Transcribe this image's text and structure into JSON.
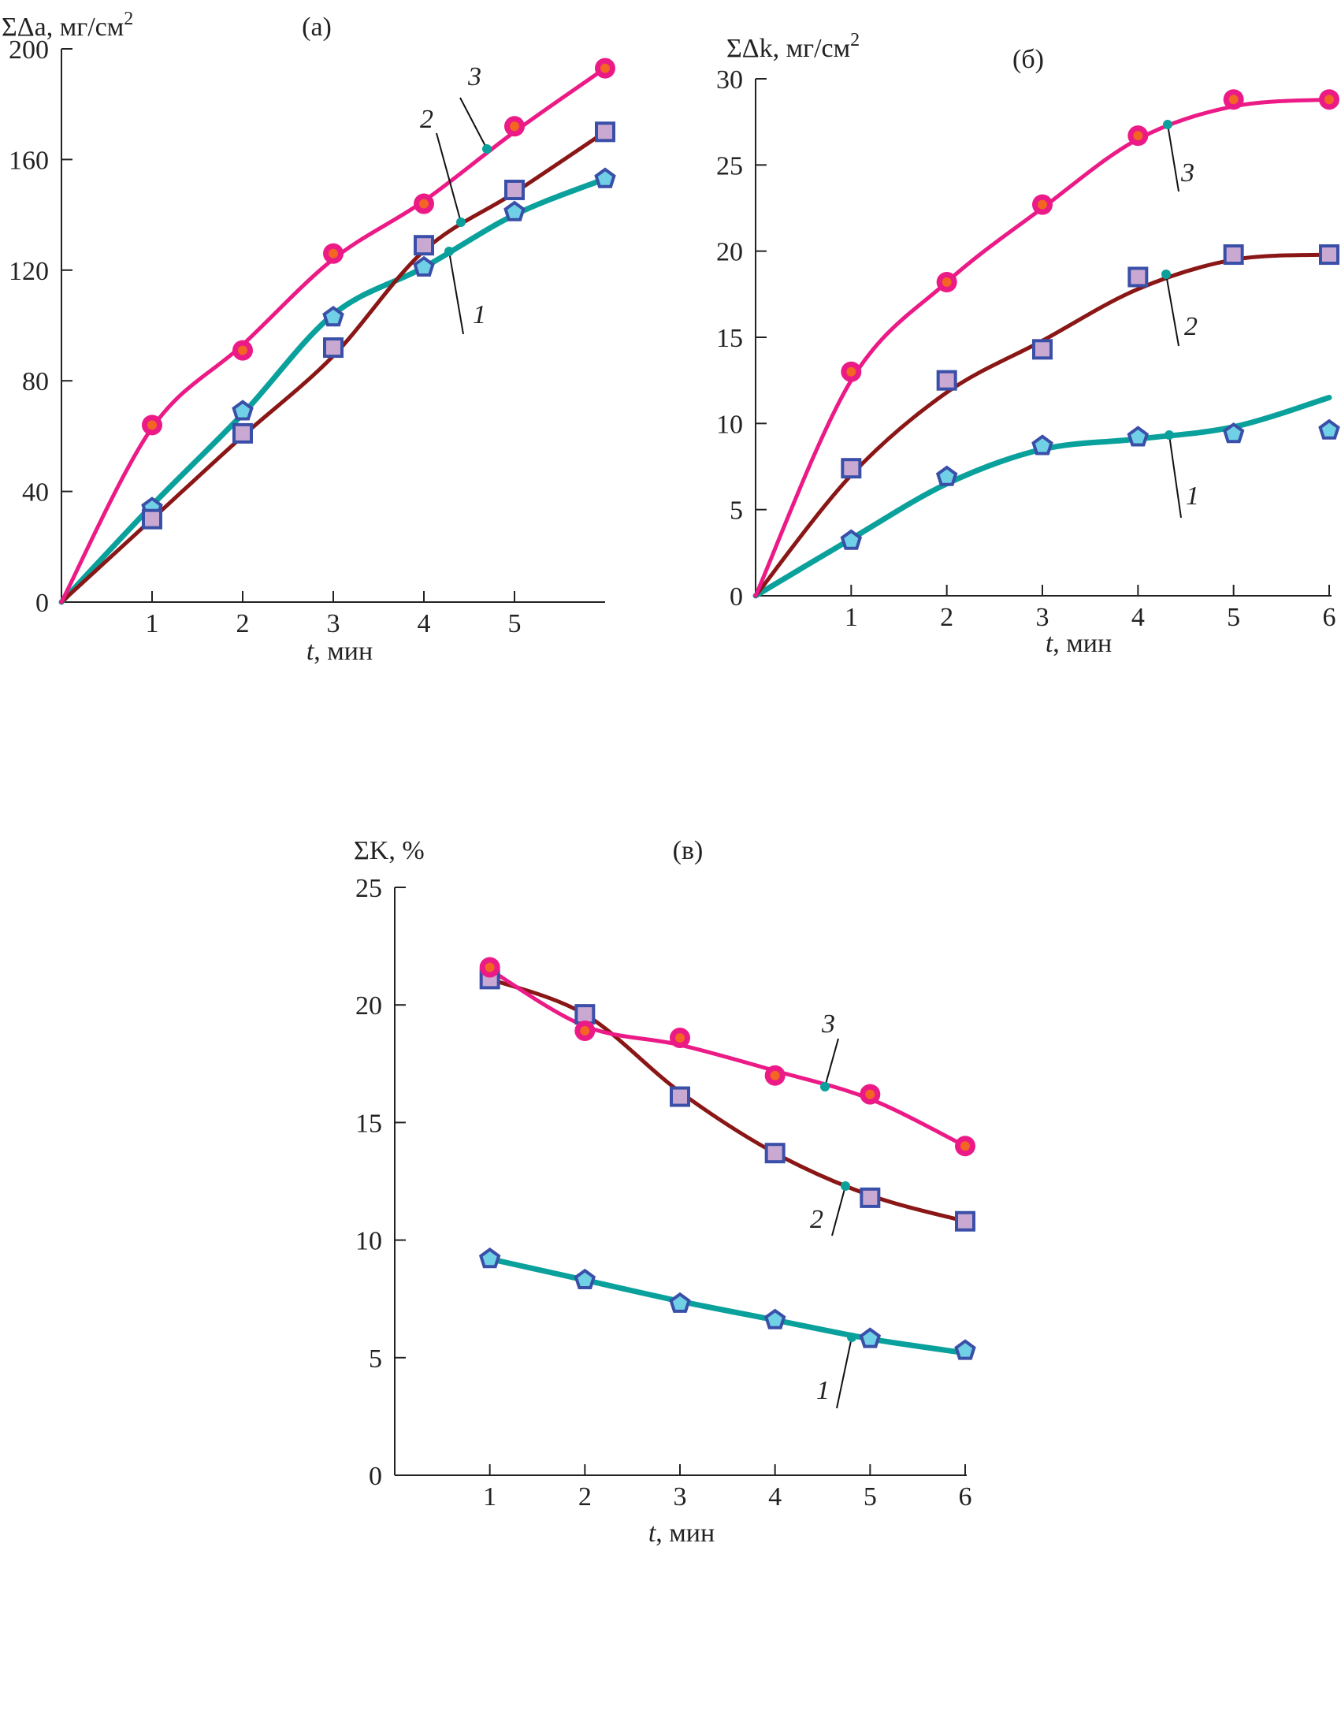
{
  "colors": {
    "s1": "#0aa19c",
    "s2": "#8a1616",
    "s3": "#ec1a86",
    "marker_edge": "#3a4fa8",
    "pent_fill": "#6fd0e6",
    "sq_fill": "#c9a9d2",
    "circ_fill": "#f26522",
    "callout_dot": "#0aa19c"
  },
  "chart_data": [
    {
      "type": "line",
      "id": "a",
      "panel_label": "(а)",
      "ylabel": "ΣΔа, мг/см",
      "ylabel_sup": "2",
      "xlabel_var": "t",
      "xlabel_unit": ", мин",
      "xlim": [
        0,
        6
      ],
      "ylim": [
        0,
        200
      ],
      "xticks": [
        1,
        2,
        3,
        4,
        5
      ],
      "yticks": [
        0,
        40,
        80,
        120,
        160,
        200
      ],
      "series": [
        {
          "name": "1",
          "marker": "pentagon",
          "x": [
            1,
            2,
            3,
            4,
            5,
            6
          ],
          "y": [
            34,
            69,
            103,
            121,
            141,
            153
          ],
          "curve": [
            [
              0,
              0
            ],
            [
              1,
              35
            ],
            [
              2,
              68
            ],
            [
              3,
              104
            ],
            [
              4,
              121
            ],
            [
              5,
              140
            ],
            [
              6,
              153
            ]
          ]
        },
        {
          "name": "2",
          "marker": "square",
          "x": [
            1,
            2,
            3,
            4,
            5,
            6
          ],
          "y": [
            30,
            61,
            92,
            129,
            149,
            170
          ],
          "curve": [
            [
              0,
              0
            ],
            [
              1,
              30
            ],
            [
              2,
              60
            ],
            [
              3,
              89
            ],
            [
              4,
              127
            ],
            [
              5,
              148
            ],
            [
              6,
              170
            ]
          ]
        },
        {
          "name": "3",
          "marker": "circle",
          "x": [
            1,
            2,
            3,
            4,
            5,
            6
          ],
          "y": [
            64,
            91,
            126,
            144,
            172,
            193
          ],
          "curve": [
            [
              0,
              0
            ],
            [
              1,
              63
            ],
            [
              2,
              93
            ],
            [
              3,
              124
            ],
            [
              4,
              145
            ],
            [
              5,
              170
            ],
            [
              6,
              193
            ]
          ]
        }
      ],
      "callouts": [
        {
          "label": "1"
        },
        {
          "label": "2"
        },
        {
          "label": "3"
        }
      ]
    },
    {
      "type": "line",
      "id": "b",
      "panel_label": "(б)",
      "ylabel": "ΣΔk, мг/см",
      "ylabel_sup": "2",
      "xlabel_var": "t",
      "xlabel_unit": ", мин",
      "xlim": [
        0,
        6
      ],
      "ylim": [
        0,
        30
      ],
      "xticks": [
        1,
        2,
        3,
        4,
        5,
        6
      ],
      "yticks": [
        0,
        5,
        10,
        15,
        20,
        25,
        30
      ],
      "series": [
        {
          "name": "1",
          "marker": "pentagon",
          "x": [
            1,
            2,
            3,
            4,
            5,
            6
          ],
          "y": [
            3.2,
            6.9,
            8.7,
            9.2,
            9.4,
            9.6
          ],
          "curve": [
            [
              0,
              0
            ],
            [
              1,
              3.3
            ],
            [
              2,
              6.5
            ],
            [
              3,
              8.5
            ],
            [
              4,
              9.1
            ],
            [
              5,
              9.8
            ],
            [
              6,
              11.5
            ]
          ]
        },
        {
          "name": "2",
          "marker": "square",
          "x": [
            1,
            2,
            3,
            4,
            5,
            6
          ],
          "y": [
            7.4,
            12.5,
            14.3,
            18.5,
            19.8,
            19.8
          ],
          "curve": [
            [
              0,
              0
            ],
            [
              1,
              7.0
            ],
            [
              2,
              11.8
            ],
            [
              3,
              14.8
            ],
            [
              4,
              17.8
            ],
            [
              5,
              19.5
            ],
            [
              6,
              19.8
            ]
          ]
        },
        {
          "name": "3",
          "marker": "circle",
          "x": [
            1,
            2,
            3,
            4,
            5,
            6
          ],
          "y": [
            13.0,
            18.2,
            22.7,
            26.7,
            28.8,
            28.8
          ],
          "curve": [
            [
              0,
              0
            ],
            [
              1,
              12.5
            ],
            [
              2,
              18.2
            ],
            [
              3,
              22.5
            ],
            [
              4,
              26.5
            ],
            [
              5,
              28.4
            ],
            [
              6,
              28.8
            ]
          ]
        }
      ],
      "callouts": [
        {
          "label": "1"
        },
        {
          "label": "2"
        },
        {
          "label": "3"
        }
      ]
    },
    {
      "type": "line",
      "id": "c",
      "panel_label": "(в)",
      "ylabel": "ΣK, %",
      "ylabel_sup": "",
      "xlabel_var": "t",
      "xlabel_unit": ", мин",
      "xlim": [
        0,
        6
      ],
      "ylim": [
        0,
        25
      ],
      "xticks": [
        1,
        2,
        3,
        4,
        5,
        6
      ],
      "yticks": [
        0,
        5,
        10,
        15,
        20,
        25
      ],
      "series": [
        {
          "name": "1",
          "marker": "pentagon",
          "x": [
            1,
            2,
            3,
            4,
            5,
            6
          ],
          "y": [
            9.2,
            8.3,
            7.3,
            6.6,
            5.8,
            5.3
          ],
          "curve": [
            [
              1,
              9.2
            ],
            [
              2,
              8.3
            ],
            [
              3,
              7.4
            ],
            [
              4,
              6.6
            ],
            [
              5,
              5.8
            ],
            [
              6,
              5.2
            ]
          ]
        },
        {
          "name": "2",
          "marker": "square",
          "x": [
            1,
            2,
            3,
            4,
            5,
            6
          ],
          "y": [
            21.1,
            19.6,
            16.1,
            13.7,
            11.8,
            10.8
          ],
          "curve": [
            [
              1,
              21.1
            ],
            [
              2,
              19.6
            ],
            [
              3,
              16.3
            ],
            [
              4,
              13.7
            ],
            [
              5,
              11.9
            ],
            [
              6,
              10.8
            ]
          ]
        },
        {
          "name": "3",
          "marker": "circle",
          "x": [
            1,
            2,
            3,
            4,
            5,
            6
          ],
          "y": [
            21.6,
            18.9,
            18.6,
            17.0,
            16.2,
            14.0
          ],
          "curve": [
            [
              1,
              21.5
            ],
            [
              2,
              19.1
            ],
            [
              3,
              18.3
            ],
            [
              4,
              17.2
            ],
            [
              5,
              16.0
            ],
            [
              6,
              14.0
            ]
          ]
        }
      ],
      "callouts": [
        {
          "label": "1"
        },
        {
          "label": "2"
        },
        {
          "label": "3"
        }
      ]
    }
  ]
}
